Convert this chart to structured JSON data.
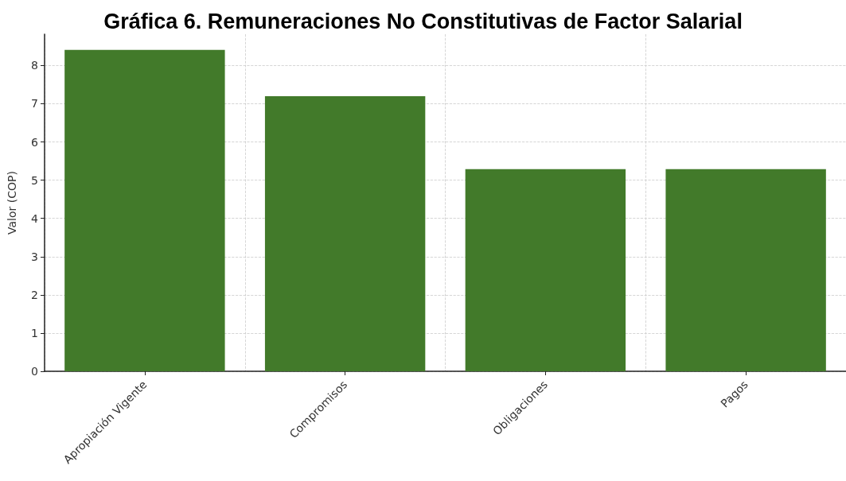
{
  "chart_data": {
    "type": "bar",
    "title": "Gráfica 6. Remuneraciones No Constitutivas de Factor Salarial",
    "ylabel": "Valor (COP)",
    "categories": [
      "Apropiación Vigente",
      "Compromisos",
      "Obligaciones",
      "Pagos"
    ],
    "values": [
      8.41,
      7.2,
      5.29,
      5.29
    ],
    "color": "#427a2a",
    "ylim": [
      0,
      8.82
    ],
    "yticks": [
      0,
      1,
      2,
      3,
      4,
      5,
      6,
      7,
      8
    ],
    "grid": true
  }
}
